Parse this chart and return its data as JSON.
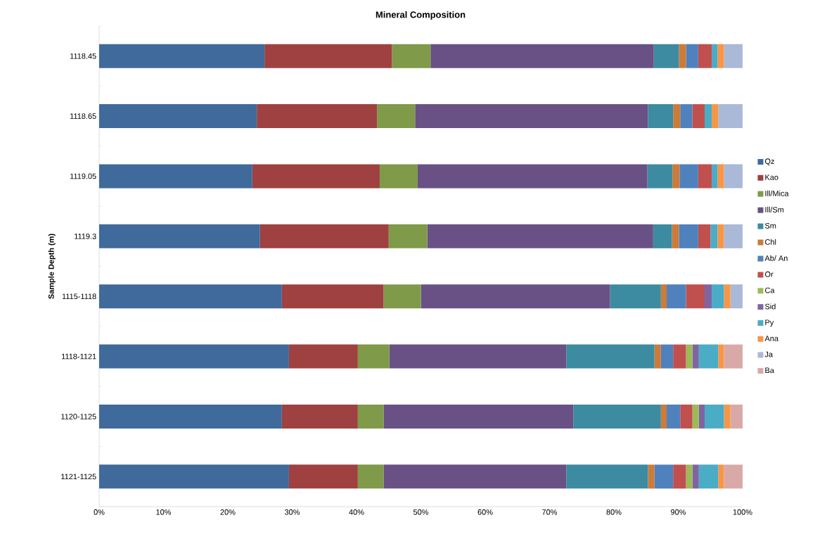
{
  "chart_data": {
    "type": "bar",
    "orientation": "horizontal",
    "stacked": true,
    "title": "Mineral Composition",
    "ylabel": "Sample Depth (m)",
    "categories": [
      "1118.45",
      "1118.65",
      "1119.05",
      "1119.3",
      "1115-1118",
      "1118-1121",
      "1120-1125",
      "1121-1125"
    ],
    "xlim": [
      0,
      100
    ],
    "xticks": [
      {
        "value": 0,
        "label": "0%"
      },
      {
        "value": 10,
        "label": "10%"
      },
      {
        "value": 20,
        "label": "20%"
      },
      {
        "value": 30,
        "label": "30%"
      },
      {
        "value": 40,
        "label": "40%"
      },
      {
        "value": 50,
        "label": "50%"
      },
      {
        "value": 60,
        "label": "60%"
      },
      {
        "value": 70,
        "label": "70%"
      },
      {
        "value": 80,
        "label": "80%"
      },
      {
        "value": 90,
        "label": "90%"
      },
      {
        "value": 100,
        "label": "100%"
      }
    ],
    "legend": "right",
    "series": [
      {
        "name": "Qz",
        "color": "#406a9b",
        "values": [
          25.7,
          24.5,
          23.8,
          25.0,
          28.4,
          29.5,
          28.4,
          29.5
        ]
      },
      {
        "name": "Kao",
        "color": "#9e4140",
        "values": [
          19.8,
          18.7,
          19.8,
          20.0,
          15.8,
          10.7,
          11.8,
          10.7
        ]
      },
      {
        "name": "Ill/Mica",
        "color": "#7f9a48",
        "values": [
          6.0,
          5.9,
          5.9,
          6.0,
          5.8,
          4.9,
          4.0,
          4.0
        ]
      },
      {
        "name": "Ill/Sm",
        "color": "#695185",
        "values": [
          34.7,
          36.2,
          35.7,
          35.1,
          29.4,
          27.5,
          29.5,
          28.4
        ]
      },
      {
        "name": "Sm",
        "color": "#3c8ba1",
        "values": [
          3.9,
          3.9,
          3.9,
          2.9,
          7.9,
          13.7,
          13.6,
          12.7
        ]
      },
      {
        "name": "Chl",
        "color": "#cc7b38",
        "values": [
          1.1,
          1.1,
          1.1,
          1.1,
          0.9,
          1.0,
          0.9,
          1.0
        ]
      },
      {
        "name": "Ab/ An",
        "color": "#4f81bd",
        "values": [
          1.9,
          1.9,
          2.9,
          3.0,
          3.0,
          1.9,
          2.1,
          2.9
        ]
      },
      {
        "name": "Or",
        "color": "#c0504d",
        "values": [
          2.1,
          1.9,
          2.1,
          1.9,
          2.9,
          2.0,
          1.9,
          2.0
        ]
      },
      {
        "name": "Ca",
        "color": "#9bbb59",
        "values": [
          null,
          null,
          null,
          null,
          null,
          1.0,
          1.0,
          1.0
        ]
      },
      {
        "name": "Sid",
        "color": "#8064a2",
        "values": [
          null,
          null,
          null,
          null,
          1.1,
          1.0,
          0.9,
          1.0
        ]
      },
      {
        "name": "Py",
        "color": "#4bacc6",
        "values": [
          0.9,
          1.1,
          0.9,
          1.1,
          1.9,
          3.0,
          3.0,
          3.0
        ]
      },
      {
        "name": "Ana",
        "color": "#f79646",
        "values": [
          1.0,
          1.0,
          1.0,
          1.0,
          1.0,
          0.9,
          1.0,
          0.9
        ]
      },
      {
        "name": "Ja",
        "color": "#aab9d7",
        "values": [
          2.9,
          3.8,
          2.9,
          2.9,
          1.9,
          null,
          null,
          null
        ]
      },
      {
        "name": "Ba",
        "color": "#d9a9a8",
        "values": [
          null,
          null,
          null,
          null,
          null,
          2.9,
          1.9,
          2.9
        ]
      }
    ]
  }
}
